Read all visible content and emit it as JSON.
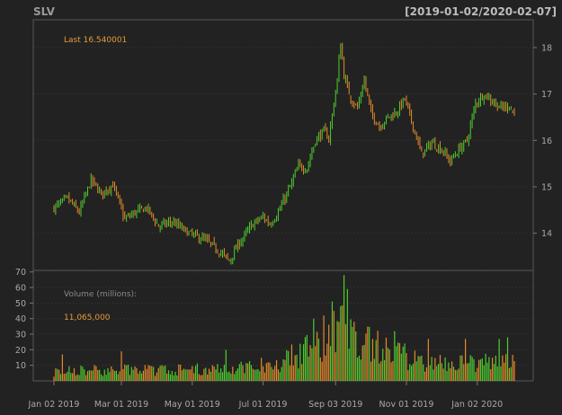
{
  "chart_data": {
    "type": "candlestick",
    "symbol": "SLV",
    "date_range": "[2019-01-02/2020-02-07]",
    "last_label": "Last 16.540001",
    "volume_label": "Volume (millions):",
    "volume_value": "11,065,000",
    "x_ticks": [
      "Jan 02 2019",
      "Mar 01 2019",
      "May 01 2019",
      "Jul 01 2019",
      "Sep 03 2019",
      "Nov 01 2019",
      "Jan 02 2020"
    ],
    "price_ticks": [
      14,
      15,
      16,
      17,
      18
    ],
    "price_ylim": [
      13.2,
      18.6
    ],
    "volume_ticks": [
      10,
      20,
      30,
      40,
      50,
      60,
      70
    ],
    "volume_ylim": [
      0,
      71
    ],
    "grid": true,
    "up_color": "#4fcd2f",
    "down_color": "#e58a2a",
    "price_path_knots": [
      {
        "i": 0,
        "v": 14.55
      },
      {
        "i": 8,
        "v": 14.75
      },
      {
        "i": 15,
        "v": 14.45
      },
      {
        "i": 22,
        "v": 15.15
      },
      {
        "i": 28,
        "v": 14.85
      },
      {
        "i": 35,
        "v": 15.05
      },
      {
        "i": 42,
        "v": 14.3
      },
      {
        "i": 48,
        "v": 14.45
      },
      {
        "i": 55,
        "v": 14.55
      },
      {
        "i": 62,
        "v": 14.15
      },
      {
        "i": 70,
        "v": 14.25
      },
      {
        "i": 80,
        "v": 14.0
      },
      {
        "i": 90,
        "v": 13.85
      },
      {
        "i": 100,
        "v": 13.55
      },
      {
        "i": 104,
        "v": 13.4
      },
      {
        "i": 110,
        "v": 13.8
      },
      {
        "i": 118,
        "v": 14.2
      },
      {
        "i": 124,
        "v": 14.35
      },
      {
        "i": 128,
        "v": 14.2
      },
      {
        "i": 133,
        "v": 14.45
      },
      {
        "i": 140,
        "v": 15.0
      },
      {
        "i": 145,
        "v": 15.45
      },
      {
        "i": 150,
        "v": 15.4
      },
      {
        "i": 155,
        "v": 16.0
      },
      {
        "i": 160,
        "v": 16.2
      },
      {
        "i": 163,
        "v": 16.05
      },
      {
        "i": 168,
        "v": 17.3
      },
      {
        "i": 170,
        "v": 18.1
      },
      {
        "i": 172,
        "v": 17.4
      },
      {
        "i": 176,
        "v": 16.9
      },
      {
        "i": 180,
        "v": 16.7
      },
      {
        "i": 184,
        "v": 17.3
      },
      {
        "i": 188,
        "v": 16.6
      },
      {
        "i": 193,
        "v": 16.3
      },
      {
        "i": 198,
        "v": 16.5
      },
      {
        "i": 203,
        "v": 16.6
      },
      {
        "i": 208,
        "v": 16.9
      },
      {
        "i": 213,
        "v": 16.3
      },
      {
        "i": 218,
        "v": 15.7
      },
      {
        "i": 224,
        "v": 15.95
      },
      {
        "i": 230,
        "v": 15.8
      },
      {
        "i": 235,
        "v": 15.55
      },
      {
        "i": 240,
        "v": 15.8
      },
      {
        "i": 245,
        "v": 16.0
      },
      {
        "i": 250,
        "v": 16.8
      },
      {
        "i": 255,
        "v": 17.0
      },
      {
        "i": 260,
        "v": 16.85
      },
      {
        "i": 265,
        "v": 16.7
      },
      {
        "i": 270,
        "v": 16.75
      },
      {
        "i": 273,
        "v": 16.54
      }
    ],
    "volume_knots": [
      {
        "i": 0,
        "v": 6
      },
      {
        "i": 40,
        "v": 7
      },
      {
        "i": 80,
        "v": 7
      },
      {
        "i": 115,
        "v": 9
      },
      {
        "i": 135,
        "v": 12
      },
      {
        "i": 150,
        "v": 20
      },
      {
        "i": 160,
        "v": 25
      },
      {
        "i": 170,
        "v": 35
      },
      {
        "i": 180,
        "v": 27
      },
      {
        "i": 200,
        "v": 18
      },
      {
        "i": 220,
        "v": 12
      },
      {
        "i": 240,
        "v": 11
      },
      {
        "i": 260,
        "v": 12
      },
      {
        "i": 273,
        "v": 11
      }
    ],
    "volume_spikes": [
      {
        "i": 5,
        "v": 17
      },
      {
        "i": 40,
        "v": 19
      },
      {
        "i": 102,
        "v": 20
      },
      {
        "i": 154,
        "v": 40
      },
      {
        "i": 160,
        "v": 42
      },
      {
        "i": 165,
        "v": 51
      },
      {
        "i": 170,
        "v": 48
      },
      {
        "i": 172,
        "v": 68
      },
      {
        "i": 174,
        "v": 59
      },
      {
        "i": 178,
        "v": 38
      },
      {
        "i": 202,
        "v": 32
      },
      {
        "i": 222,
        "v": 27
      },
      {
        "i": 244,
        "v": 27
      },
      {
        "i": 264,
        "v": 27
      },
      {
        "i": 269,
        "v": 28
      }
    ]
  }
}
